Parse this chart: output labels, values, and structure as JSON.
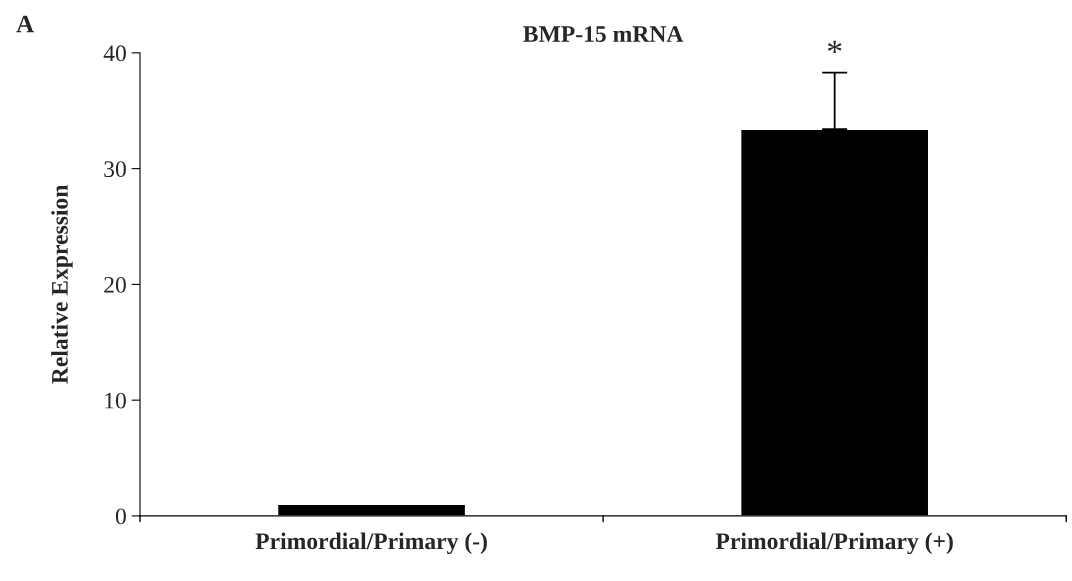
{
  "chart_data": {
    "type": "bar",
    "title": "BMP-15 mRNA",
    "ylabel": "Relative Expression",
    "categories": [
      "Primordial/Primary (-)",
      "Primordial/Primary (+)"
    ],
    "values": [
      1,
      33.4
    ],
    "color": "#000000",
    "errors": [
      null,
      [
        33.4,
        38.3
      ]
    ],
    "ylim": [
      0,
      40
    ],
    "yticks": [
      0,
      10,
      20,
      30,
      40
    ],
    "grid": false,
    "legend": false,
    "annotations": [
      {
        "text": "*",
        "x": "Primordial/Primary (+)",
        "y": 38.3
      },
      "A"
    ]
  }
}
